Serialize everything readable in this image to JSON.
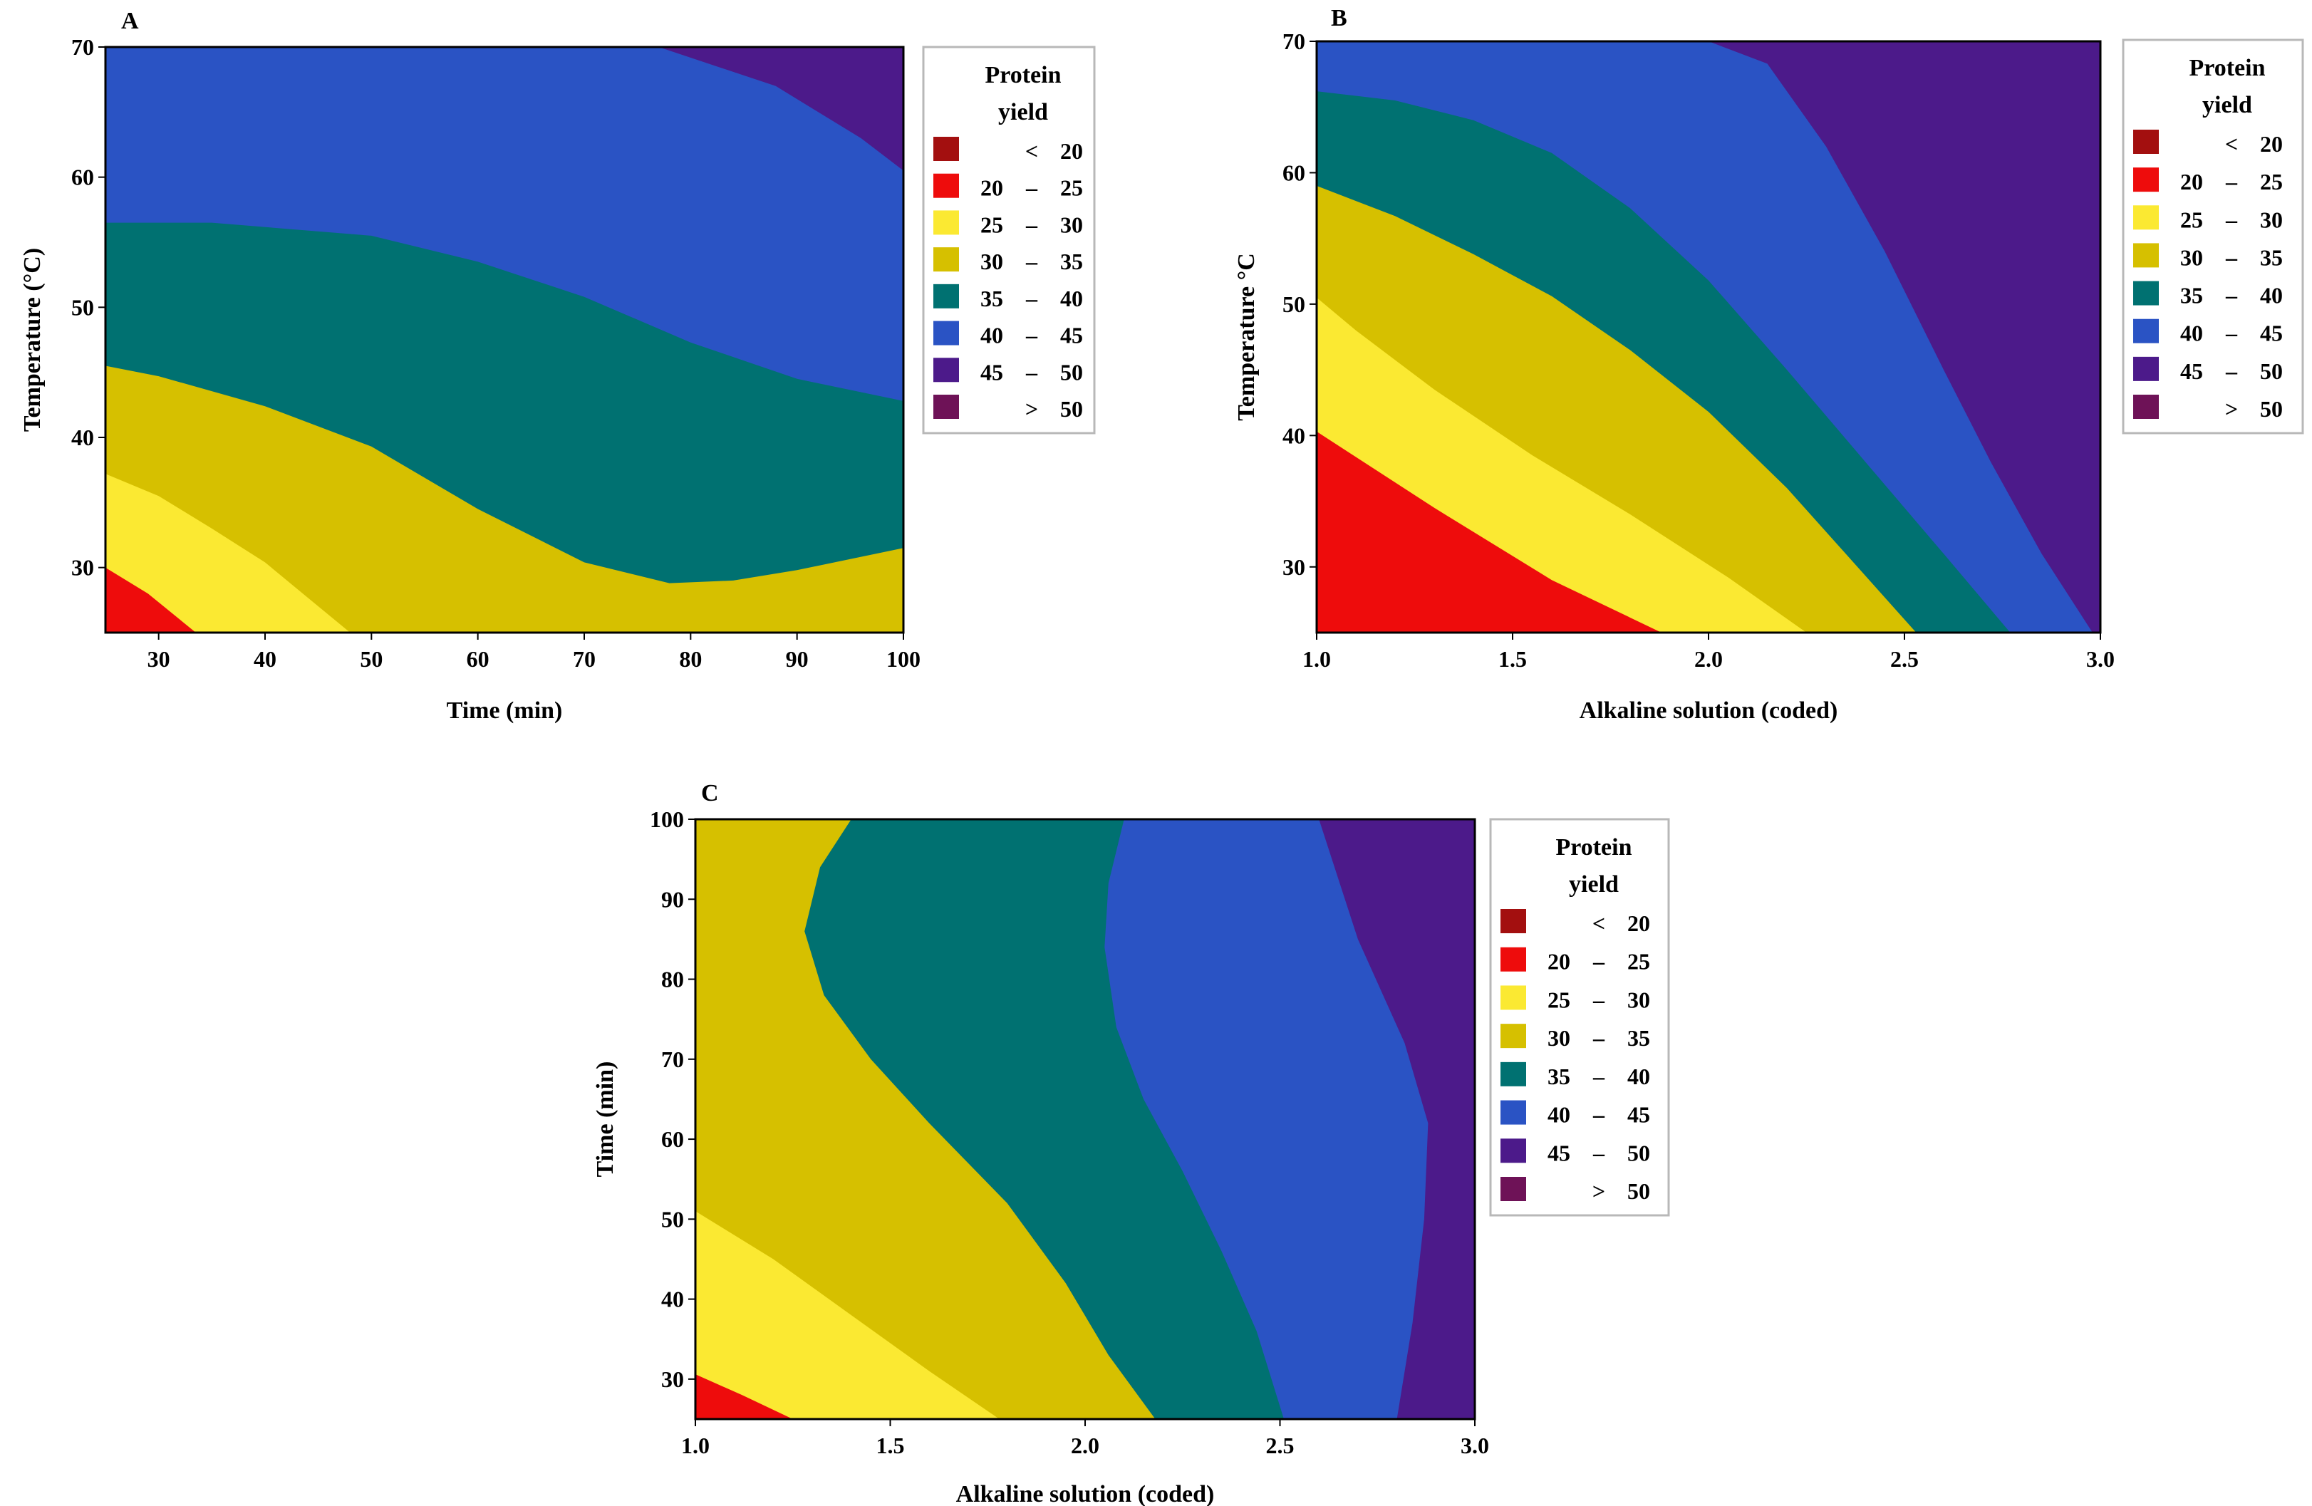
{
  "palette": {
    "lt20": "#a30f0f",
    "b20_25": "#ee0c0c",
    "b25_30": "#fbe932",
    "b30_35": "#d6c000",
    "b35_40": "#007171",
    "b40_45": "#2a53c4",
    "b45_50": "#4c1a8a",
    "gt50": "#6e1257",
    "legend_border": "#b8b8b8"
  },
  "chart_data": [
    {
      "type": "contour",
      "panel_label": "A",
      "xlabel": "Time (min)",
      "ylabel": "Temperature (°C)",
      "xlim": [
        25,
        100
      ],
      "ylim": [
        25,
        70
      ],
      "xticks": [
        "30",
        "40",
        "50",
        "60",
        "70",
        "80",
        "90",
        "100"
      ],
      "yticks": [
        "30",
        "40",
        "50",
        "60",
        "70"
      ],
      "legend": {
        "title": [
          "Protein",
          "yield"
        ],
        "entries": [
          {
            "lo": "",
            "sep": "<",
            "hi": "20",
            "color_key": "lt20"
          },
          {
            "lo": "20",
            "sep": "–",
            "hi": "25",
            "color_key": "b20_25"
          },
          {
            "lo": "25",
            "sep": "–",
            "hi": "30",
            "color_key": "b25_30"
          },
          {
            "lo": "30",
            "sep": "–",
            "hi": "35",
            "color_key": "b30_35"
          },
          {
            "lo": "35",
            "sep": "–",
            "hi": "40",
            "color_key": "b35_40"
          },
          {
            "lo": "40",
            "sep": "–",
            "hi": "45",
            "color_key": "b40_45"
          },
          {
            "lo": "45",
            "sep": "–",
            "hi": "50",
            "color_key": "b45_50"
          },
          {
            "lo": "",
            "sep": ">",
            "hi": "50",
            "color_key": "gt50"
          }
        ]
      },
      "regions": [
        {
          "color_key": "b40_45",
          "points": [
            [
              25,
              25
            ],
            [
              100,
              25
            ],
            [
              100,
              70
            ],
            [
              25,
              70
            ]
          ]
        },
        {
          "color_key": "b45_50",
          "points": [
            [
              77,
              70
            ],
            [
              100,
              70
            ],
            [
              100,
              60.5
            ],
            [
              96,
              63
            ],
            [
              88,
              67
            ]
          ]
        },
        {
          "color_key": "b35_40",
          "points": [
            [
              25,
              25
            ],
            [
              100,
              25
            ],
            [
              100,
              42.8
            ],
            [
              90,
              44.5
            ],
            [
              80,
              47.3
            ],
            [
              70,
              50.8
            ],
            [
              60,
              53.5
            ],
            [
              50,
              55.5
            ],
            [
              35,
              56.5
            ],
            [
              25,
              56.5
            ]
          ]
        },
        {
          "color_key": "b30_35",
          "points": [
            [
              25,
              25
            ],
            [
              100,
              25
            ],
            [
              100,
              31.5
            ],
            [
              90,
              29.8
            ],
            [
              84,
              29
            ],
            [
              78,
              28.8
            ],
            [
              70,
              30.4
            ],
            [
              60,
              34.5
            ],
            [
              50,
              39.3
            ],
            [
              40,
              42.4
            ],
            [
              30,
              44.7
            ],
            [
              25,
              45.5
            ]
          ]
        },
        {
          "color_key": "b25_30",
          "points": [
            [
              25,
              25
            ],
            [
              48,
              25
            ],
            [
              44,
              27.7
            ],
            [
              40,
              30.4
            ],
            [
              35,
              33
            ],
            [
              30,
              35.5
            ],
            [
              25,
              37.2
            ]
          ]
        },
        {
          "color_key": "b20_25",
          "points": [
            [
              25,
              25
            ],
            [
              33.5,
              25
            ],
            [
              29,
              28
            ],
            [
              25,
              30
            ]
          ]
        }
      ]
    },
    {
      "type": "contour",
      "panel_label": "B",
      "xlabel": "Alkaline solution (coded)",
      "ylabel": "Temperature °C",
      "xlim": [
        1.0,
        3.0
      ],
      "ylim": [
        25,
        70
      ],
      "xticks": [
        "1.0",
        "1.5",
        "2.0",
        "2.5",
        "3.0"
      ],
      "yticks": [
        "30",
        "40",
        "50",
        "60",
        "70"
      ],
      "legend": {
        "title": [
          "Protein",
          "yield"
        ],
        "entries": [
          {
            "lo": "",
            "sep": "<",
            "hi": "20",
            "color_key": "lt20"
          },
          {
            "lo": "20",
            "sep": "–",
            "hi": "25",
            "color_key": "b20_25"
          },
          {
            "lo": "25",
            "sep": "–",
            "hi": "30",
            "color_key": "b25_30"
          },
          {
            "lo": "30",
            "sep": "–",
            "hi": "35",
            "color_key": "b30_35"
          },
          {
            "lo": "35",
            "sep": "–",
            "hi": "40",
            "color_key": "b35_40"
          },
          {
            "lo": "40",
            "sep": "–",
            "hi": "45",
            "color_key": "b40_45"
          },
          {
            "lo": "45",
            "sep": "–",
            "hi": "50",
            "color_key": "b45_50"
          },
          {
            "lo": "",
            "sep": ">",
            "hi": "50",
            "color_key": "gt50"
          }
        ]
      },
      "regions": [
        {
          "color_key": "b45_50",
          "points": [
            [
              1.0,
              25
            ],
            [
              3.0,
              25
            ],
            [
              3.0,
              70
            ],
            [
              1.0,
              70
            ]
          ]
        },
        {
          "color_key": "b40_45",
          "points": [
            [
              1.0,
              25
            ],
            [
              2.98,
              25
            ],
            [
              2.85,
              31
            ],
            [
              2.72,
              38
            ],
            [
              2.6,
              45
            ],
            [
              2.45,
              54
            ],
            [
              2.3,
              62
            ],
            [
              2.15,
              68.3
            ],
            [
              2.0,
              70
            ],
            [
              1.0,
              70
            ]
          ]
        },
        {
          "color_key": "b35_40",
          "points": [
            [
              1.0,
              25
            ],
            [
              2.77,
              25
            ],
            [
              2.6,
              31
            ],
            [
              2.4,
              38
            ],
            [
              2.2,
              45
            ],
            [
              2.0,
              51.8
            ],
            [
              1.8,
              57.3
            ],
            [
              1.6,
              61.5
            ],
            [
              1.4,
              64
            ],
            [
              1.2,
              65.5
            ],
            [
              1.0,
              66.2
            ]
          ]
        },
        {
          "color_key": "b30_35",
          "points": [
            [
              1.0,
              25
            ],
            [
              2.53,
              25
            ],
            [
              2.35,
              31
            ],
            [
              2.2,
              36
            ],
            [
              2.0,
              41.8
            ],
            [
              1.8,
              46.5
            ],
            [
              1.6,
              50.6
            ],
            [
              1.4,
              53.8
            ],
            [
              1.2,
              56.7
            ],
            [
              1.0,
              59
            ]
          ]
        },
        {
          "color_key": "b25_30",
          "points": [
            [
              1.0,
              25
            ],
            [
              2.25,
              25
            ],
            [
              2.05,
              29.2
            ],
            [
              1.8,
              34
            ],
            [
              1.55,
              38.5
            ],
            [
              1.3,
              43.5
            ],
            [
              1.1,
              48
            ],
            [
              1.0,
              50.5
            ]
          ]
        },
        {
          "color_key": "b20_25",
          "points": [
            [
              1.0,
              25
            ],
            [
              1.88,
              25
            ],
            [
              1.6,
              29
            ],
            [
              1.3,
              34.5
            ],
            [
              1.0,
              40.3
            ]
          ]
        }
      ]
    },
    {
      "type": "contour",
      "panel_label": "C",
      "xlabel": "Alkaline solution (coded)",
      "ylabel": "Time (min)",
      "xlim": [
        1.0,
        3.0
      ],
      "ylim": [
        25,
        100
      ],
      "xticks": [
        "1.0",
        "1.5",
        "2.0",
        "2.5",
        "3.0"
      ],
      "yticks": [
        "30",
        "40",
        "50",
        "60",
        "70",
        "80",
        "90",
        "100"
      ],
      "legend": {
        "title": [
          "Protein",
          "yield"
        ],
        "entries": [
          {
            "lo": "",
            "sep": "<",
            "hi": "20",
            "color_key": "lt20"
          },
          {
            "lo": "20",
            "sep": "–",
            "hi": "25",
            "color_key": "b20_25"
          },
          {
            "lo": "25",
            "sep": "–",
            "hi": "30",
            "color_key": "b25_30"
          },
          {
            "lo": "30",
            "sep": "–",
            "hi": "35",
            "color_key": "b30_35"
          },
          {
            "lo": "35",
            "sep": "–",
            "hi": "40",
            "color_key": "b35_40"
          },
          {
            "lo": "40",
            "sep": "–",
            "hi": "45",
            "color_key": "b40_45"
          },
          {
            "lo": "45",
            "sep": "–",
            "hi": "50",
            "color_key": "b45_50"
          },
          {
            "lo": "",
            "sep": ">",
            "hi": "50",
            "color_key": "gt50"
          }
        ]
      },
      "regions": [
        {
          "color_key": "b30_35",
          "points": [
            [
              1.0,
              25
            ],
            [
              3.0,
              25
            ],
            [
              3.0,
              100
            ],
            [
              1.0,
              100
            ]
          ]
        },
        {
          "color_key": "b35_40",
          "points": [
            [
              1.4,
              100
            ],
            [
              1.32,
              94
            ],
            [
              1.28,
              86
            ],
            [
              1.33,
              78
            ],
            [
              1.45,
              70
            ],
            [
              1.6,
              62
            ],
            [
              1.8,
              52
            ],
            [
              1.95,
              42
            ],
            [
              2.06,
              33
            ],
            [
              2.18,
              25
            ],
            [
              3.0,
              25
            ],
            [
              3.0,
              100
            ]
          ]
        },
        {
          "color_key": "b40_45",
          "points": [
            [
              2.1,
              100
            ],
            [
              2.06,
              92
            ],
            [
              2.05,
              84
            ],
            [
              2.08,
              74
            ],
            [
              2.15,
              65
            ],
            [
              2.25,
              56
            ],
            [
              2.35,
              46
            ],
            [
              2.44,
              36
            ],
            [
              2.51,
              25
            ],
            [
              3.0,
              25
            ],
            [
              3.0,
              100
            ]
          ]
        },
        {
          "color_key": "b45_50",
          "points": [
            [
              2.6,
              100
            ],
            [
              2.7,
              85
            ],
            [
              2.82,
              72
            ],
            [
              2.88,
              62
            ],
            [
              2.87,
              50
            ],
            [
              2.84,
              37
            ],
            [
              2.8,
              25
            ],
            [
              3.0,
              25
            ],
            [
              3.0,
              100
            ]
          ]
        },
        {
          "color_key": "b25_30",
          "points": [
            [
              1.0,
              25
            ],
            [
              1.78,
              25
            ],
            [
              1.6,
              31
            ],
            [
              1.4,
              38
            ],
            [
              1.2,
              45
            ],
            [
              1.0,
              51
            ]
          ]
        },
        {
          "color_key": "b20_25",
          "points": [
            [
              1.0,
              25
            ],
            [
              1.25,
              25
            ],
            [
              1.12,
              28
            ],
            [
              1.0,
              30.6
            ]
          ]
        }
      ]
    }
  ]
}
